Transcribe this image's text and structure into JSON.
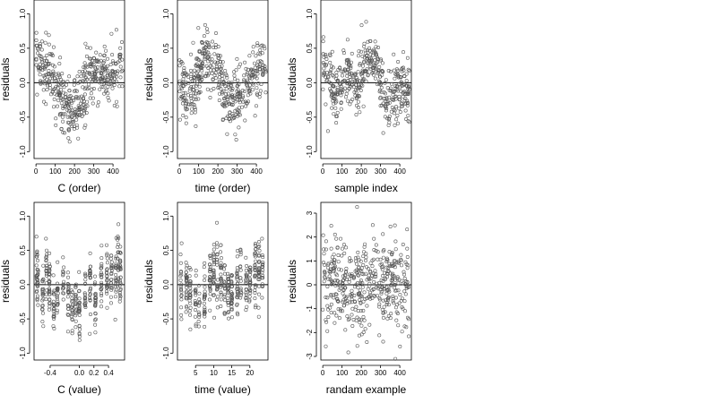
{
  "figure": {
    "point_color": "#555555",
    "point_marker": "open-circle",
    "reference_line_y": 0
  },
  "chart_data": [
    {
      "type": "scatter",
      "xlabel": "C (order)",
      "ylabel": "residuals",
      "xlim": [
        -10,
        460
      ],
      "ylim": [
        -1.1,
        1.2
      ],
      "xticks": [
        0,
        100,
        200,
        300,
        400
      ],
      "xtick_labels": [
        "0",
        "100",
        "200",
        "300",
        "400"
      ],
      "yticks": [
        -1.0,
        -0.5,
        0.0,
        0.5,
        1.0
      ],
      "ytick_labels": [
        "-1.0",
        "-0.5",
        "0.0",
        "0.5",
        "1.0"
      ],
      "hline": 0,
      "pattern": "wave",
      "n_points": 450,
      "x": [
        10,
        30,
        55,
        80,
        100,
        125,
        150,
        175,
        200,
        225,
        250,
        275,
        300,
        325,
        350,
        375,
        400,
        425,
        450
      ],
      "y": [
        0.35,
        0.3,
        0.2,
        0.1,
        -0.05,
        -0.2,
        -0.3,
        -0.38,
        -0.4,
        -0.3,
        -0.1,
        0.05,
        0.15,
        0.2,
        0.15,
        0.05,
        0.1,
        0.25,
        0.35
      ]
    },
    {
      "type": "scatter",
      "xlabel": "time (order)",
      "ylabel": "residuals",
      "xlim": [
        -10,
        460
      ],
      "ylim": [
        -1.1,
        1.2
      ],
      "xticks": [
        0,
        100,
        200,
        300,
        400
      ],
      "xtick_labels": [
        "0",
        "100",
        "200",
        "300",
        "400"
      ],
      "yticks": [
        -1.0,
        -0.5,
        0.0,
        0.5,
        1.0
      ],
      "ytick_labels": [
        "-1.0",
        "-0.5",
        "0.0",
        "0.5",
        "1.0"
      ],
      "hline": 0,
      "pattern": "wave",
      "n_points": 450,
      "x": [
        10,
        30,
        55,
        80,
        100,
        125,
        150,
        175,
        200,
        225,
        250,
        275,
        300,
        325,
        350,
        375,
        400,
        425,
        450
      ],
      "y": [
        -0.05,
        -0.15,
        -0.2,
        -0.1,
        0.1,
        0.35,
        0.4,
        0.3,
        0.15,
        -0.05,
        -0.2,
        -0.3,
        -0.3,
        -0.2,
        -0.05,
        0.1,
        0.2,
        0.25,
        0.2
      ]
    },
    {
      "type": "scatter",
      "xlabel": "sample index",
      "ylabel": "residuals",
      "xlim": [
        -10,
        460
      ],
      "ylim": [
        -1.1,
        1.2
      ],
      "xticks": [
        0,
        100,
        200,
        300,
        400
      ],
      "xtick_labels": [
        "0",
        "100",
        "200",
        "300",
        "400"
      ],
      "yticks": [
        -1.0,
        -0.5,
        0.0,
        0.5,
        1.0
      ],
      "ytick_labels": [
        "-1.0",
        "-0.5",
        "0.0",
        "0.5",
        "1.0"
      ],
      "hline": 0,
      "pattern": "wave",
      "n_points": 450,
      "x": [
        10,
        30,
        55,
        80,
        100,
        125,
        150,
        175,
        200,
        225,
        250,
        275,
        300,
        325,
        350,
        375,
        400,
        425,
        450
      ],
      "y": [
        0.3,
        0.05,
        -0.2,
        -0.1,
        0.0,
        0.15,
        0.05,
        -0.1,
        0.1,
        0.3,
        0.35,
        0.25,
        0.0,
        -0.25,
        -0.3,
        -0.15,
        0.0,
        -0.1,
        -0.2
      ]
    },
    {
      "type": "scatter",
      "xlabel": "C (value)",
      "ylabel": "residuals",
      "xlim": [
        -0.62,
        0.62
      ],
      "ylim": [
        -1.1,
        1.2
      ],
      "xticks": [
        -0.4,
        0.0,
        0.2,
        0.4
      ],
      "xtick_labels": [
        "-0.4",
        "0.0",
        "0.2",
        "0.4"
      ],
      "yticks": [
        -1.0,
        -0.5,
        0.0,
        0.5,
        1.0
      ],
      "ytick_labels": [
        "-1.0",
        "-0.5",
        "0.0",
        "0.5",
        "1.0"
      ],
      "hline": 0,
      "pattern": "columns",
      "n_points": 450,
      "x": [
        -0.58,
        -0.57,
        -0.5,
        -0.45,
        -0.41,
        -0.35,
        -0.3,
        -0.22,
        -0.15,
        -0.1,
        -0.05,
        0.0,
        0.08,
        0.15,
        0.22,
        0.3,
        0.38,
        0.44,
        0.5,
        0.53,
        0.56
      ],
      "y": [
        0.25,
        0.1,
        -0.1,
        0.2,
        0.0,
        -0.3,
        -0.1,
        0.05,
        -0.2,
        -0.3,
        -0.3,
        -0.35,
        -0.1,
        0.0,
        -0.2,
        0.0,
        0.1,
        0.1,
        0.2,
        0.25,
        0.15
      ]
    },
    {
      "type": "scatter",
      "xlabel": "time (value)",
      "ylabel": "residuals",
      "xlim": [
        0,
        25
      ],
      "ylim": [
        -1.1,
        1.2
      ],
      "xticks": [
        5,
        10,
        15,
        20
      ],
      "xtick_labels": [
        "5",
        "10",
        "15",
        "20"
      ],
      "yticks": [
        -1.0,
        -0.5,
        0.0,
        0.5,
        1.0
      ],
      "ytick_labels": [
        "-1.0",
        "-0.5",
        "0.0",
        "0.5",
        "1.0"
      ],
      "hline": 0,
      "pattern": "columns",
      "n_points": 450,
      "x": [
        1.0,
        2.5,
        3.5,
        5.0,
        6.0,
        7.5,
        9.0,
        10.0,
        11.0,
        12.0,
        13.0,
        14.0,
        15.0,
        16.5,
        17.5,
        19.0,
        20.0,
        21.5,
        22.5,
        23.5
      ],
      "y": [
        0.0,
        0.05,
        -0.1,
        -0.25,
        -0.3,
        -0.15,
        0.1,
        0.25,
        0.2,
        0.1,
        0.0,
        -0.1,
        -0.15,
        0.0,
        0.1,
        0.0,
        0.1,
        0.2,
        0.25,
        0.2
      ]
    },
    {
      "type": "scatter",
      "xlabel": "randam example",
      "ylabel": "residuals",
      "xlim": [
        -10,
        460
      ],
      "ylim": [
        -3.15,
        3.45
      ],
      "xticks": [
        0,
        100,
        200,
        300,
        400
      ],
      "xtick_labels": [
        "0",
        "100",
        "200",
        "300",
        "400"
      ],
      "yticks": [
        -3,
        -2,
        -1,
        0,
        1,
        2,
        3
      ],
      "ytick_labels": [
        "-3",
        "-2",
        "-1",
        "0",
        "1",
        "2",
        "3"
      ],
      "hline": 0,
      "pattern": "noise",
      "n_points": 450,
      "x": [
        0,
        450
      ],
      "y": [
        0,
        0
      ]
    }
  ]
}
